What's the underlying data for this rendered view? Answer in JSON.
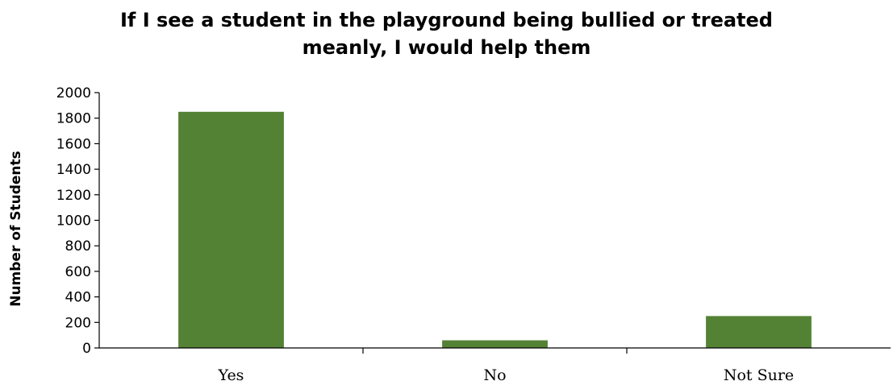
{
  "chart_data": {
    "type": "bar",
    "title_lines": [
      "If I see a student in the playground being bullied or treated",
      "meanly, I would help them"
    ],
    "categories": [
      "Yes",
      "No",
      "Not Sure"
    ],
    "values": [
      1850,
      60,
      250
    ],
    "ylabel": "Number of  Students",
    "xlabel": "",
    "ylim": [
      0,
      2000
    ],
    "yticks": [
      0,
      200,
      400,
      600,
      800,
      1000,
      1200,
      1400,
      1600,
      1800,
      2000
    ],
    "grid": false,
    "legend": "none",
    "bar_color": "#548235"
  }
}
